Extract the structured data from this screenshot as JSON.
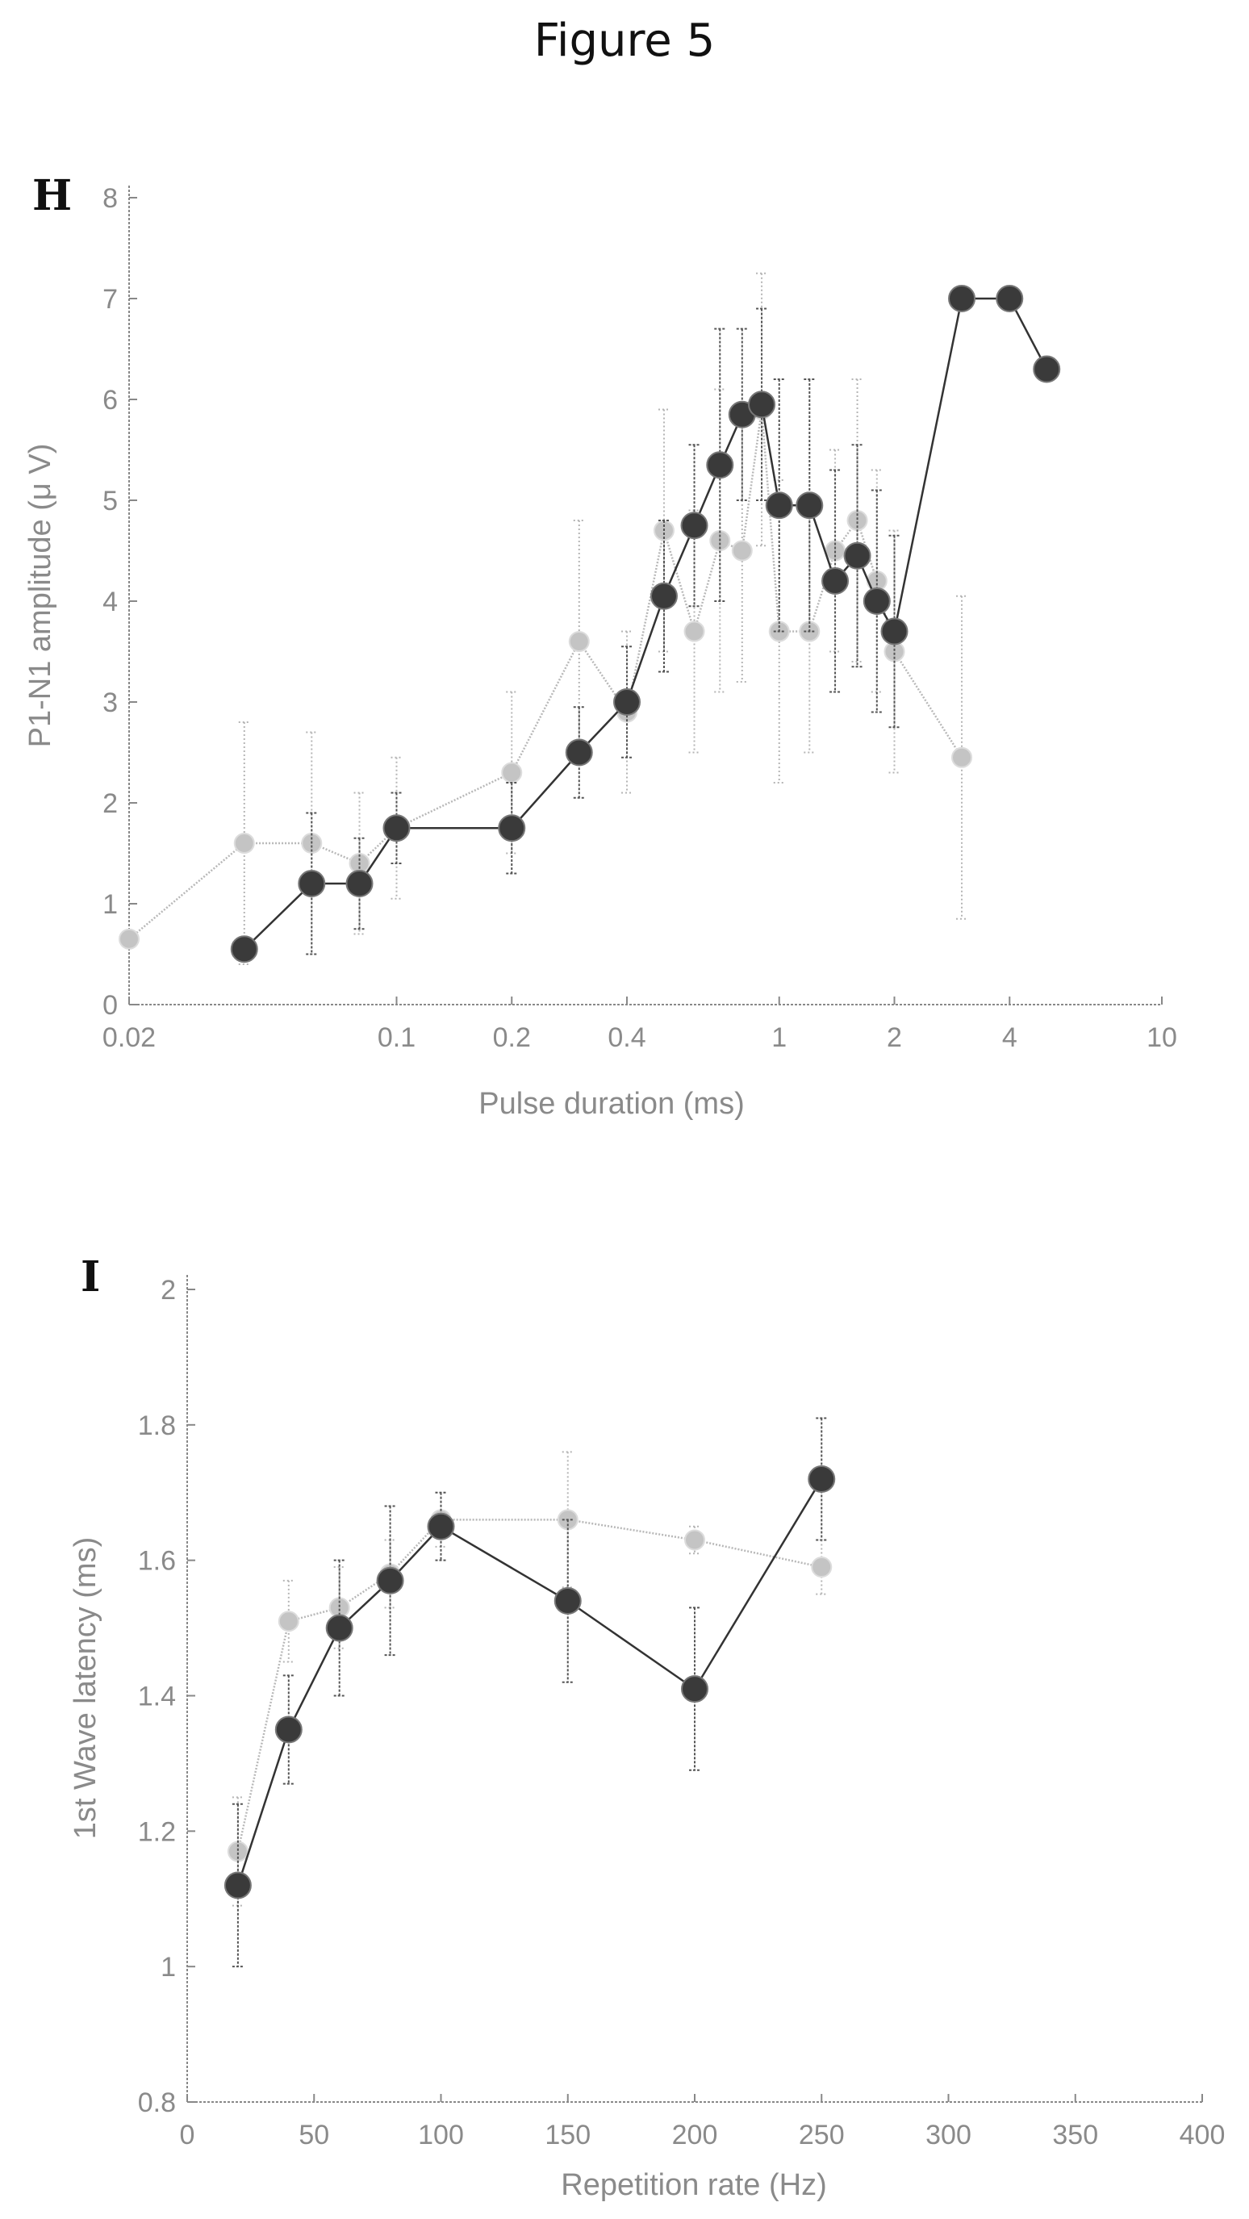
{
  "figure_title": "Figure 5",
  "chart_data": [
    {
      "panel": "H",
      "type": "line",
      "xlabel": "Pulse duration (ms)",
      "ylabel": "P1-N1 amplitude (μ V)",
      "xscale": "log",
      "xlim": [
        0.02,
        10
      ],
      "ylim": [
        0,
        8
      ],
      "xticks": [
        0.02,
        0.1,
        0.2,
        0.4,
        1,
        2,
        4,
        10
      ],
      "xtick_labels": [
        "0.02",
        "0.1",
        "0.2",
        "0.4",
        "1",
        "2",
        "4",
        "10"
      ],
      "yticks": [
        0,
        1,
        2,
        3,
        4,
        5,
        6,
        7,
        8
      ],
      "ytick_labels": [
        "0",
        "1",
        "2",
        "3",
        "4",
        "5",
        "6",
        "7",
        "8"
      ],
      "grid": false,
      "series": [
        {
          "color": "#3a3a3a",
          "x": [
            0.04,
            0.06,
            0.08,
            0.1,
            0.2,
            0.3,
            0.4,
            0.5,
            0.6,
            0.7,
            0.8,
            0.9,
            1.0,
            1.2,
            1.4,
            1.6,
            1.8,
            2.0,
            3.0,
            4.0,
            5.0
          ],
          "y": [
            0.55,
            1.2,
            1.2,
            1.75,
            1.75,
            2.5,
            3.0,
            4.05,
            4.75,
            5.35,
            5.85,
            5.95,
            4.95,
            4.95,
            4.2,
            4.45,
            4.0,
            3.7,
            7.0,
            7.0,
            6.3
          ],
          "yerr": [
            0,
            0.7,
            0.45,
            0.35,
            0.45,
            0.45,
            0.55,
            0.75,
            0.8,
            1.35,
            0.85,
            0.95,
            1.25,
            1.25,
            1.1,
            1.1,
            1.1,
            0.95,
            0,
            0,
            0
          ]
        },
        {
          "color": "#c4c4c4",
          "x": [
            0.02,
            0.04,
            0.06,
            0.08,
            0.1,
            0.2,
            0.3,
            0.4,
            0.5,
            0.6,
            0.7,
            0.8,
            0.9,
            1.0,
            1.2,
            1.4,
            1.6,
            1.8,
            2.0,
            3.0
          ],
          "y": [
            0.65,
            1.6,
            1.6,
            1.4,
            1.75,
            2.3,
            3.6,
            2.9,
            4.7,
            3.7,
            4.6,
            4.5,
            5.9,
            3.7,
            3.7,
            4.5,
            4.8,
            4.2,
            3.5,
            2.45
          ],
          "yerr": [
            0,
            1.2,
            1.1,
            0.7,
            0.7,
            0.8,
            1.2,
            0.8,
            1.2,
            1.2,
            1.5,
            1.3,
            1.35,
            1.5,
            1.2,
            1.0,
            1.4,
            1.1,
            1.2,
            1.6
          ]
        }
      ]
    },
    {
      "panel": "I",
      "type": "line",
      "xlabel": "Repetition rate (Hz)",
      "ylabel": "1st Wave latency (ms)",
      "xscale": "linear",
      "xlim": [
        0,
        400
      ],
      "ylim": [
        0.8,
        2
      ],
      "xticks": [
        0,
        50,
        100,
        150,
        200,
        250,
        300,
        350,
        400
      ],
      "xtick_labels": [
        "0",
        "50",
        "100",
        "150",
        "200",
        "250",
        "300",
        "350",
        "400"
      ],
      "yticks": [
        0.8,
        1,
        1.2,
        1.4,
        1.6,
        1.8,
        2
      ],
      "ytick_labels": [
        "0.8",
        "1",
        "1.2",
        "1.4",
        "1.6",
        "1.8",
        "2"
      ],
      "grid": false,
      "series": [
        {
          "color": "#3a3a3a",
          "x": [
            20,
            40,
            60,
            80,
            100,
            150,
            200,
            250
          ],
          "y": [
            1.12,
            1.35,
            1.5,
            1.57,
            1.65,
            1.54,
            1.41,
            1.72
          ],
          "yerr": [
            0.12,
            0.08,
            0.1,
            0.11,
            0.05,
            0.12,
            0.12,
            0.09
          ]
        },
        {
          "color": "#c4c4c4",
          "x": [
            20,
            40,
            60,
            80,
            100,
            150,
            200,
            250
          ],
          "y": [
            1.17,
            1.51,
            1.53,
            1.58,
            1.66,
            1.66,
            1.63,
            1.59
          ],
          "yerr": [
            0.08,
            0.06,
            0.06,
            0.05,
            0.04,
            0.1,
            0.02,
            0.04
          ]
        }
      ]
    }
  ]
}
